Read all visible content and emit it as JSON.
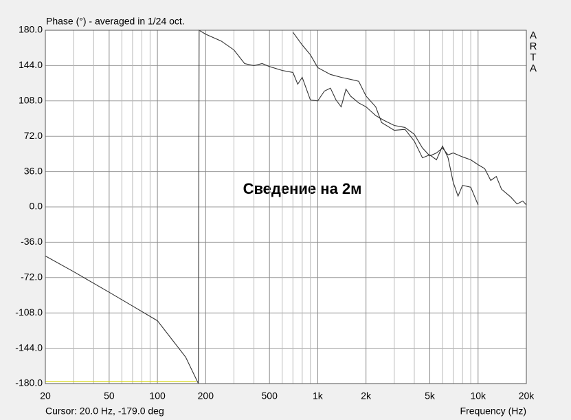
{
  "chart_data": {
    "type": "line",
    "title": "Phase (°) - averaged in 1/24 oct.",
    "x_label": "Frequency (Hz)",
    "brand": "ARTA",
    "annotation": "Сведение на 2м",
    "cursor": "Cursor: 20.0 Hz, -179.0 deg",
    "xscale": "log",
    "grid": true,
    "xlim": [
      20,
      20000
    ],
    "ylim": [
      -180,
      180
    ],
    "xticks": [
      20,
      50,
      100,
      200,
      500,
      {
        "value": 1000,
        "label": "1k"
      },
      {
        "value": 2000,
        "label": "2k"
      },
      {
        "value": 5000,
        "label": "5k"
      },
      {
        "value": 10000,
        "label": "10k"
      },
      {
        "value": 20000,
        "label": "20k"
      }
    ],
    "xminorticks": [
      30,
      40,
      60,
      70,
      80,
      90,
      300,
      400,
      600,
      700,
      800,
      900,
      3000,
      4000,
      6000,
      7000,
      8000,
      9000
    ],
    "yticks": [
      {
        "value": 180,
        "label": "180.0"
      },
      {
        "value": 144,
        "label": "144.0"
      },
      {
        "value": 108,
        "label": "108.0"
      },
      {
        "value": 72,
        "label": "72.0"
      },
      {
        "value": 36,
        "label": "36.0"
      },
      {
        "value": 0,
        "label": "0.0"
      },
      {
        "value": -36,
        "label": "-36.0"
      },
      {
        "value": -72,
        "label": "-72.0"
      },
      {
        "value": -108,
        "label": "-108.0"
      },
      {
        "value": -144,
        "label": "-144.0"
      },
      {
        "value": -180,
        "label": "-180.0"
      }
    ],
    "series": [
      {
        "color": "#333333",
        "x": [
          20,
          30,
          50,
          70,
          100,
          150,
          180,
          182,
          200,
          250,
          300,
          350,
          400,
          450,
          500,
          600,
          700,
          750,
          800,
          900,
          1000,
          1100,
          1200,
          1300,
          1400,
          1500,
          1600,
          1800,
          2000,
          2300,
          2600,
          3000,
          3500,
          4000,
          4500,
          5000,
          5500,
          6000,
          6500,
          7000,
          8000,
          9000,
          10000,
          11000,
          12000,
          13000,
          14000,
          16000,
          17500,
          19000,
          20000
        ],
        "values": [
          -50,
          -66,
          -87,
          -101,
          -116,
          -153,
          -180,
          180,
          176,
          169,
          160,
          146,
          144,
          146,
          143,
          139,
          137,
          125,
          132,
          109,
          108,
          118,
          121,
          109,
          102,
          120,
          113,
          106,
          102,
          93,
          88,
          83,
          81,
          74,
          60,
          52,
          55,
          60,
          53,
          55,
          51,
          48,
          43,
          39,
          27,
          31,
          18,
          10,
          3,
          6,
          2
        ]
      },
      {
        "color": "#333333",
        "x": [
          700,
          800,
          900,
          1000,
          1200,
          1400,
          1600,
          1800,
          2000,
          2300,
          2500,
          3000,
          3500,
          4000,
          4500,
          5000,
          5500,
          6000,
          6500,
          7000,
          7500,
          8000,
          9000,
          10000
        ],
        "values": [
          178,
          165,
          155,
          142,
          135,
          132,
          130,
          128,
          113,
          102,
          86,
          78,
          79,
          67,
          50,
          53,
          48,
          62,
          50,
          25,
          11,
          22,
          20,
          2
        ]
      },
      {
        "color": "#d4d400",
        "x": [
          20,
          175
        ],
        "values": [
          -178,
          -178
        ]
      }
    ]
  }
}
